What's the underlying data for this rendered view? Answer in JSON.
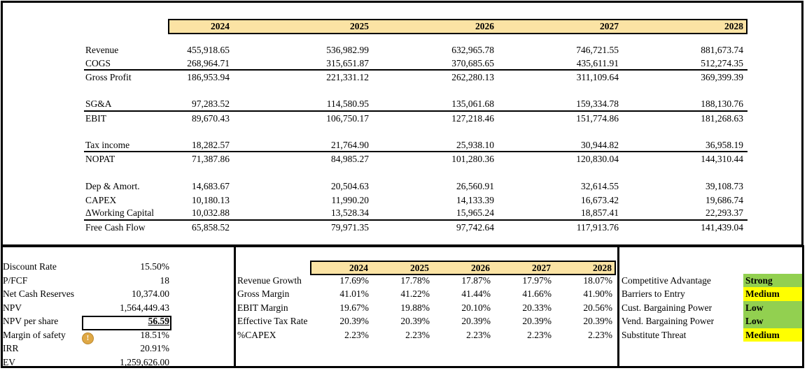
{
  "colors": {
    "header_fill": "#FBE3A4",
    "green": "#92D050",
    "yellow": "#FFFF00",
    "border": "#000000",
    "warning_gold": "#DFA845"
  },
  "top_table": {
    "years": [
      "2024",
      "2025",
      "2026",
      "2027",
      "2028"
    ],
    "rows": [
      {
        "label": "Revenue",
        "values": [
          "455,918.65",
          "536,982.99",
          "632,965.78",
          "746,721.55",
          "881,673.74"
        ],
        "underline": false
      },
      {
        "label": "COGS",
        "values": [
          "268,964.71",
          "315,651.87",
          "370,685.65",
          "435,611.91",
          "512,274.35"
        ],
        "underline": true
      },
      {
        "label": "Gross Profit",
        "values": [
          "186,953.94",
          "221,331.12",
          "262,280.13",
          "311,109.64",
          "369,399.39"
        ],
        "underline": false
      },
      {
        "label": "",
        "values": [
          "",
          "",
          "",
          "",
          ""
        ],
        "underline": false
      },
      {
        "label": "SG&A",
        "values": [
          "97,283.52",
          "114,580.95",
          "135,061.68",
          "159,334.78",
          "188,130.76"
        ],
        "underline": true
      },
      {
        "label": "EBIT",
        "values": [
          "89,670.43",
          "106,750.17",
          "127,218.46",
          "151,774.86",
          "181,268.63"
        ],
        "underline": false
      },
      {
        "label": "",
        "values": [
          "",
          "",
          "",
          "",
          ""
        ],
        "underline": false
      },
      {
        "label": "Tax income",
        "values": [
          "18,282.57",
          "21,764.90",
          "25,938.10",
          "30,944.82",
          "36,958.19"
        ],
        "underline": true
      },
      {
        "label": "NOPAT",
        "values": [
          "71,387.86",
          "84,985.27",
          "101,280.36",
          "120,830.04",
          "144,310.44"
        ],
        "underline": false
      },
      {
        "label": "",
        "values": [
          "",
          "",
          "",
          "",
          ""
        ],
        "underline": false
      },
      {
        "label": "Dep & Amort.",
        "values": [
          "14,683.67",
          "20,504.63",
          "26,560.91",
          "32,614.55",
          "39,108.73"
        ],
        "underline": false
      },
      {
        "label": "CAPEX",
        "values": [
          "10,180.13",
          "11,990.20",
          "14,133.39",
          "16,673.42",
          "19,686.74"
        ],
        "underline": false
      },
      {
        "label": "ΔWorking Capital",
        "values": [
          "10,032.88",
          "13,528.34",
          "15,965.24",
          "18,857.41",
          "22,293.37"
        ],
        "underline": true
      },
      {
        "label": "Free Cash Flow",
        "values": [
          "65,858.52",
          "79,971.35",
          "97,742.64",
          "117,913.76",
          "141,439.04"
        ],
        "underline": false
      }
    ]
  },
  "summary": {
    "warning_icon_glyph": "!",
    "rows": [
      {
        "label": "Discount Rate",
        "value": "15.50%",
        "boxed": false
      },
      {
        "label": "P/FCF",
        "value": "18",
        "boxed": false
      },
      {
        "label": "Net Cash Reserves",
        "value": "10,374.00",
        "boxed": false
      },
      {
        "label": "NPV",
        "value": "1,564,449.43",
        "boxed": false
      },
      {
        "label": "NPV per share",
        "value": "56.59",
        "boxed": true
      },
      {
        "label": "Margin of safety",
        "value": "18.51%",
        "boxed": false
      },
      {
        "label": "IRR",
        "value": "20.91%",
        "boxed": false
      },
      {
        "label": "EV",
        "value": "1,259,626.00",
        "boxed": false
      }
    ]
  },
  "ratios": {
    "years": [
      "2024",
      "2025",
      "2026",
      "2027",
      "2028"
    ],
    "rows": [
      {
        "label": "Revenue Growth",
        "values": [
          "17.69%",
          "17.78%",
          "17.87%",
          "17.97%",
          "18.07%"
        ]
      },
      {
        "label": "Gross Margin",
        "values": [
          "41.01%",
          "41.22%",
          "41.44%",
          "41.66%",
          "41.90%"
        ]
      },
      {
        "label": "EBIT Margin",
        "values": [
          "19.67%",
          "19.88%",
          "20.10%",
          "20.33%",
          "20.56%"
        ]
      },
      {
        "label": "Effective Tax Rate",
        "values": [
          "20.39%",
          "20.39%",
          "20.39%",
          "20.39%",
          "20.39%"
        ]
      },
      {
        "label": "%CAPEX",
        "values": [
          "2.23%",
          "2.23%",
          "2.23%",
          "2.23%",
          "2.23%"
        ]
      }
    ]
  },
  "qualitative": {
    "rows": [
      {
        "label": "Competitive Advantage",
        "value": "Strong",
        "color": "green"
      },
      {
        "label": "Barriers to Entry",
        "value": "Medium",
        "color": "yellow"
      },
      {
        "label": "Cust. Bargaining Power",
        "value": "Low",
        "color": "green"
      },
      {
        "label": "Vend. Bargaining Power",
        "value": "Low",
        "color": "green"
      },
      {
        "label": "Substitute Threat",
        "value": "Medium",
        "color": "yellow"
      }
    ]
  }
}
